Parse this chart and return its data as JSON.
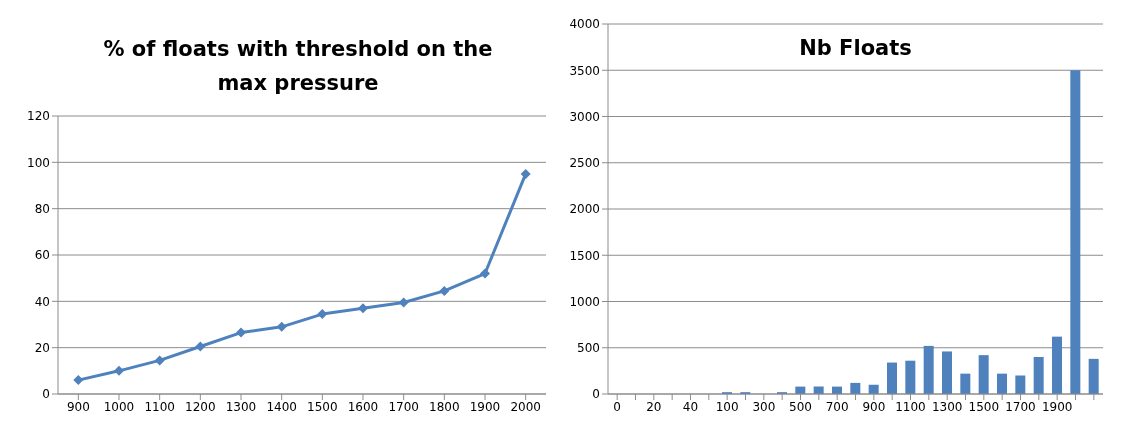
{
  "chart_data": [
    {
      "type": "line",
      "title": "% of floats with threshold on the max pressure",
      "categories": [
        "900",
        "1000",
        "1100",
        "1200",
        "1300",
        "1400",
        "1500",
        "1600",
        "1700",
        "1800",
        "1900",
        "2000"
      ],
      "series": [
        {
          "color": "#4f81bd",
          "values": [
            6,
            10,
            14.5,
            20.5,
            26.5,
            29,
            34.5,
            37,
            39.5,
            44.5,
            52,
            95
          ]
        }
      ],
      "ylim": [
        0,
        120
      ],
      "yticks": [
        0,
        20,
        40,
        60,
        80,
        100,
        120
      ],
      "grid": "y",
      "legend": false,
      "marker": "diamond",
      "line_style": "solid"
    },
    {
      "type": "bar",
      "title": "Nb Floats",
      "categories": [
        "0",
        null,
        "20",
        null,
        "40",
        null,
        "100",
        null,
        "300",
        null,
        "500",
        null,
        "700",
        null,
        "900",
        null,
        "1100",
        null,
        "1300",
        null,
        "1500",
        null,
        "1700",
        null,
        "1900",
        null,
        null
      ],
      "series": [
        {
          "color": "#4f81bd",
          "values": [
            0,
            0,
            0,
            0,
            0,
            0,
            20,
            20,
            0,
            20,
            80,
            80,
            80,
            120,
            100,
            340,
            360,
            520,
            460,
            220,
            420,
            220,
            200,
            400,
            620,
            3500,
            380
          ]
        }
      ],
      "ylim": [
        0,
        4000
      ],
      "yticks": [
        0,
        500,
        1000,
        1500,
        2000,
        2500,
        3000,
        3500,
        4000
      ],
      "grid": "y",
      "legend": false
    }
  ]
}
